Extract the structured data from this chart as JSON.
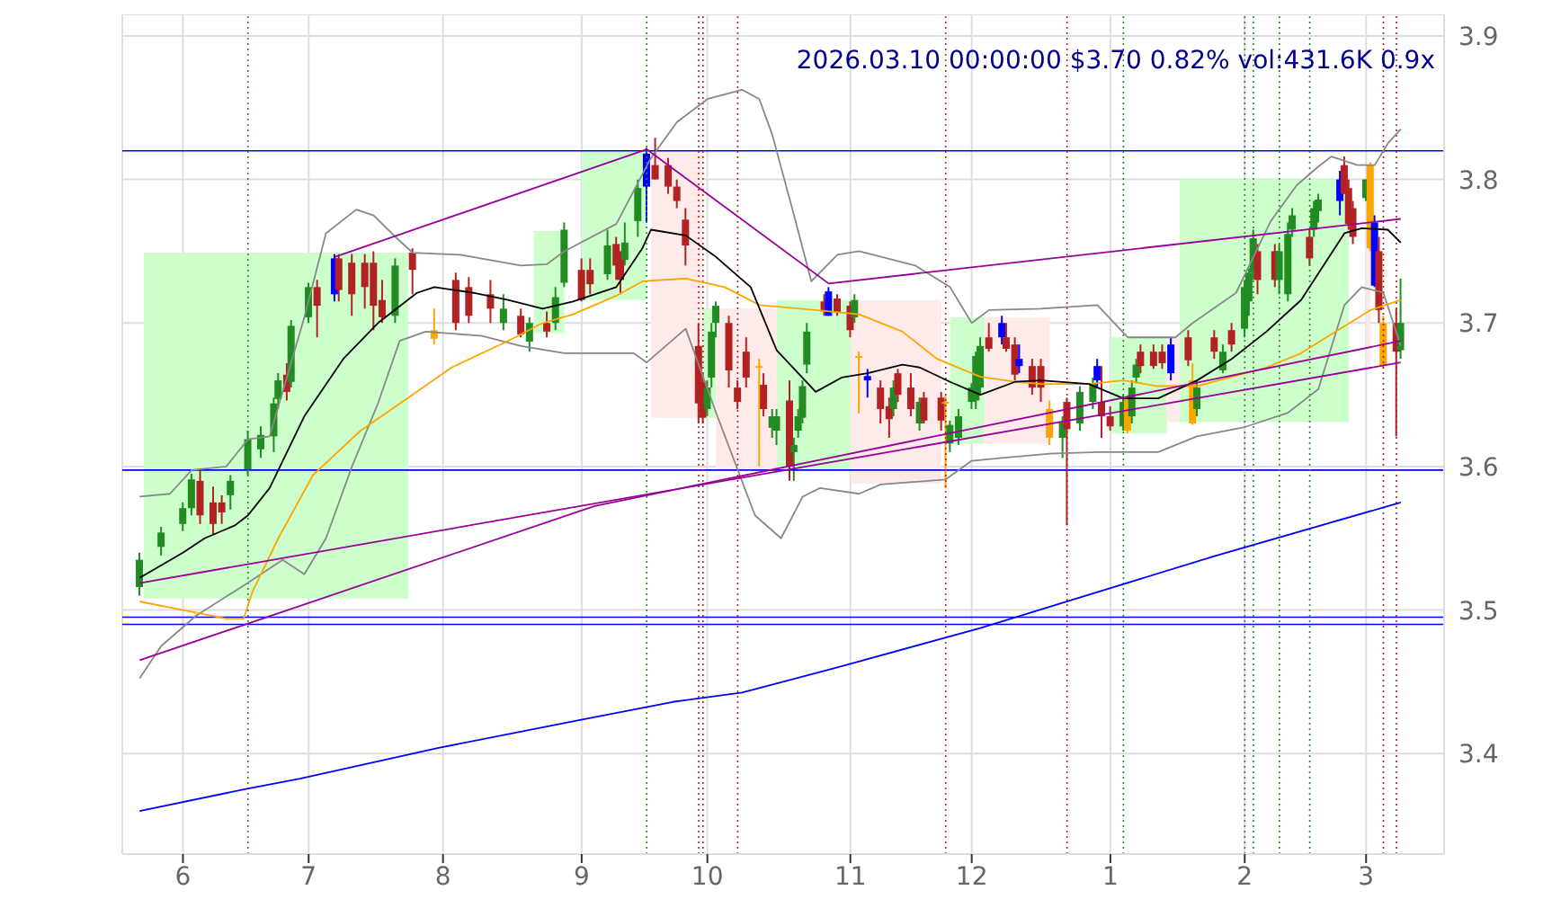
{
  "chart_data": {
    "type": "candlestick",
    "annotations": [
      "2026.03.10 00:00:00 $3.70 0.82% vol:431.6K 0.9x"
    ],
    "xlim": [
      "2025-05-19",
      "2026-03-20"
    ],
    "xticks": [
      {
        "value": "2025-06-02",
        "label": "6"
      },
      {
        "value": "2025-07-01",
        "label": "7"
      },
      {
        "value": "2025-08-01",
        "label": "8"
      },
      {
        "value": "2025-09-02",
        "label": "9"
      },
      {
        "value": "2025-10-01",
        "label": "10"
      },
      {
        "value": "2025-11-03",
        "label": "11"
      },
      {
        "value": "2025-12-01",
        "label": "12"
      },
      {
        "value": "2026-01-02",
        "label": "1"
      },
      {
        "value": "2026-02-02",
        "label": "2"
      },
      {
        "value": "2026-03-02",
        "label": "3"
      }
    ],
    "ylim": [
      3.33,
      3.915
    ],
    "yticks": [
      3.4,
      3.5,
      3.6,
      3.7,
      3.8,
      3.9
    ],
    "grid": true,
    "x": [
      "2025-05-23",
      "2025-05-28",
      "2025-06-02",
      "2025-06-04",
      "2025-06-06",
      "2025-06-09",
      "2025-06-11",
      "2025-06-13",
      "2025-06-17",
      "2025-06-20",
      "2025-06-23",
      "2025-06-24",
      "2025-06-26",
      "2025-06-27",
      "2025-07-01",
      "2025-07-03",
      "2025-07-07",
      "2025-07-08",
      "2025-07-11",
      "2025-07-14",
      "2025-07-16",
      "2025-07-18",
      "2025-07-21",
      "2025-07-25",
      "2025-07-30",
      "2025-08-04",
      "2025-08-07",
      "2025-08-12",
      "2025-08-15",
      "2025-08-19",
      "2025-08-21",
      "2025-08-25",
      "2025-08-27",
      "2025-08-29",
      "2025-09-02",
      "2025-09-04",
      "2025-09-08",
      "2025-09-10",
      "2025-09-11",
      "2025-09-12",
      "2025-09-15",
      "2025-09-17",
      "2025-09-19",
      "2025-09-22",
      "2025-09-24",
      "2025-09-26",
      "2025-09-29",
      "2025-09-30",
      "2025-10-01",
      "2025-10-02",
      "2025-10-03",
      "2025-10-06",
      "2025-10-08",
      "2025-10-10",
      "2025-10-13",
      "2025-10-14",
      "2025-10-16",
      "2025-10-17",
      "2025-10-20",
      "2025-10-21",
      "2025-10-22",
      "2025-10-23",
      "2025-10-24",
      "2025-10-28",
      "2025-10-29",
      "2025-10-31",
      "2025-11-03",
      "2025-11-04",
      "2025-11-05",
      "2025-11-07",
      "2025-11-10",
      "2025-11-12",
      "2025-11-13",
      "2025-11-14",
      "2025-11-17",
      "2025-11-19",
      "2025-11-20",
      "2025-11-24",
      "2025-11-25",
      "2025-11-26",
      "2025-11-28",
      "2025-12-01",
      "2025-12-02",
      "2025-12-03",
      "2025-12-05",
      "2025-12-08",
      "2025-12-09",
      "2025-12-11",
      "2025-12-12",
      "2025-12-15",
      "2025-12-17",
      "2025-12-19",
      "2025-12-22",
      "2025-12-23",
      "2025-12-26",
      "2025-12-29",
      "2025-12-30",
      "2025-12-31",
      "2026-01-02",
      "2026-01-05",
      "2026-01-06",
      "2026-01-07",
      "2026-01-08",
      "2026-01-09",
      "2026-01-12",
      "2026-01-14",
      "2026-01-16",
      "2026-01-20",
      "2026-01-21",
      "2026-01-22",
      "2026-01-26",
      "2026-01-28",
      "2026-01-30",
      "2026-02-02",
      "2026-02-03",
      "2026-02-04",
      "2026-02-05",
      "2026-02-09",
      "2026-02-10",
      "2026-02-12",
      "2026-02-13",
      "2026-02-17",
      "2026-02-18",
      "2026-02-19",
      "2026-02-24",
      "2026-02-25",
      "2026-02-26",
      "2026-02-27",
      "2026-03-02",
      "2026-03-03",
      "2026-03-04",
      "2026-03-05",
      "2026-03-06",
      "2026-03-09",
      "2026-03-10"
    ],
    "ohlc": [
      [
        3.516,
        3.54,
        3.51,
        3.535
      ],
      [
        3.544,
        3.558,
        3.538,
        3.554
      ],
      [
        3.56,
        3.575,
        3.555,
        3.571
      ],
      [
        3.571,
        3.595,
        3.566,
        3.591
      ],
      [
        3.59,
        3.598,
        3.56,
        3.566
      ],
      [
        3.575,
        3.586,
        3.553,
        3.56
      ],
      [
        3.575,
        3.58,
        3.56,
        3.568
      ],
      [
        3.58,
        3.594,
        3.57,
        3.59
      ],
      [
        3.598,
        3.625,
        3.594,
        3.619
      ],
      [
        3.612,
        3.628,
        3.606,
        3.622
      ],
      [
        3.621,
        3.648,
        3.61,
        3.644
      ],
      [
        3.647,
        3.665,
        3.64,
        3.66
      ],
      [
        3.664,
        3.672,
        3.646,
        3.652
      ],
      [
        3.659,
        3.702,
        3.655,
        3.698
      ],
      [
        3.704,
        3.728,
        3.7,
        3.725
      ],
      [
        3.725,
        3.73,
        3.69,
        3.712
      ],
      [
        3.72,
        3.748,
        3.715,
        3.745
      ],
      [
        3.745,
        3.748,
        3.715,
        3.723
      ],
      [
        3.742,
        3.748,
        3.705,
        3.72
      ],
      [
        3.742,
        3.748,
        3.71,
        3.725
      ],
      [
        3.742,
        3.75,
        3.695,
        3.712
      ],
      [
        3.716,
        3.73,
        3.7,
        3.704
      ],
      [
        3.705,
        3.745,
        3.7,
        3.74
      ],
      [
        3.749,
        3.752,
        3.72,
        3.737
      ],
      [
        3.695,
        3.71,
        3.685,
        3.689
      ],
      [
        3.73,
        3.735,
        3.695,
        3.7
      ],
      [
        3.725,
        3.732,
        3.7,
        3.705
      ],
      [
        3.72,
        3.73,
        3.7,
        3.71
      ],
      [
        3.7,
        3.72,
        3.695,
        3.71
      ],
      [
        3.705,
        3.71,
        3.69,
        3.692
      ],
      [
        3.687,
        3.704,
        3.68,
        3.7
      ],
      [
        3.7,
        3.708,
        3.69,
        3.694
      ],
      [
        3.7,
        3.725,
        3.695,
        3.718
      ],
      [
        3.728,
        3.77,
        3.725,
        3.765
      ],
      [
        3.737,
        3.745,
        3.715,
        3.716
      ],
      [
        3.737,
        3.745,
        3.72,
        3.727
      ],
      [
        3.734,
        3.765,
        3.73,
        3.754
      ],
      [
        3.755,
        3.76,
        3.73,
        3.74
      ],
      [
        3.745,
        3.75,
        3.72,
        3.73
      ],
      [
        3.744,
        3.77,
        3.74,
        3.756
      ],
      [
        3.771,
        3.8,
        3.76,
        3.794
      ],
      [
        3.795,
        3.822,
        3.77,
        3.818
      ],
      [
        3.81,
        3.829,
        3.8,
        3.8
      ],
      [
        3.81,
        3.815,
        3.79,
        3.795
      ],
      [
        3.795,
        3.8,
        3.78,
        3.785
      ],
      [
        3.772,
        3.78,
        3.74,
        3.754
      ],
      [
        3.684,
        3.7,
        3.63,
        3.644
      ],
      [
        3.659,
        3.665,
        3.63,
        3.634
      ],
      [
        3.64,
        3.66,
        3.635,
        3.655
      ],
      [
        3.662,
        3.7,
        3.655,
        3.694
      ],
      [
        3.7,
        3.715,
        3.69,
        3.712
      ],
      [
        3.7,
        3.705,
        3.655,
        3.667
      ],
      [
        3.655,
        3.66,
        3.64,
        3.645
      ],
      [
        3.68,
        3.69,
        3.655,
        3.662
      ],
      [
        3.67,
        3.675,
        3.6,
        3.67
      ],
      [
        3.657,
        3.665,
        3.635,
        3.64
      ],
      [
        3.627,
        3.64,
        3.62,
        3.635
      ],
      [
        3.625,
        3.64,
        3.615,
        3.635
      ],
      [
        3.646,
        3.66,
        3.59,
        3.6
      ],
      [
        3.61,
        3.62,
        3.59,
        3.615
      ],
      [
        3.625,
        3.64,
        3.62,
        3.635
      ],
      [
        3.634,
        3.66,
        3.63,
        3.656
      ],
      [
        3.671,
        3.7,
        3.665,
        3.694
      ],
      [
        3.715,
        3.72,
        3.705,
        3.708
      ],
      [
        3.705,
        3.725,
        3.705,
        3.722
      ],
      [
        3.717,
        3.72,
        3.705,
        3.707
      ],
      [
        3.712,
        3.715,
        3.69,
        3.695
      ],
      [
        3.704,
        3.72,
        3.7,
        3.716
      ],
      [
        3.677,
        3.68,
        3.637,
        3.676
      ],
      [
        3.663,
        3.668,
        3.648,
        3.66
      ],
      [
        3.655,
        3.66,
        3.63,
        3.64
      ],
      [
        3.642,
        3.648,
        3.62,
        3.633
      ],
      [
        3.64,
        3.66,
        3.635,
        3.655
      ],
      [
        3.665,
        3.668,
        3.645,
        3.65
      ],
      [
        3.655,
        3.665,
        3.635,
        3.64
      ],
      [
        3.63,
        3.648,
        3.625,
        3.645
      ],
      [
        3.648,
        3.652,
        3.63,
        3.632
      ],
      [
        3.648,
        3.652,
        3.625,
        3.632
      ],
      [
        3.645,
        3.65,
        3.585,
        3.644
      ],
      [
        3.616,
        3.632,
        3.61,
        3.629
      ],
      [
        3.62,
        3.64,
        3.615,
        3.635
      ],
      [
        3.645,
        3.658,
        3.64,
        3.655
      ],
      [
        3.646,
        3.68,
        3.64,
        3.677
      ],
      [
        3.655,
        3.69,
        3.65,
        3.684
      ],
      [
        3.69,
        3.7,
        3.68,
        3.682
      ],
      [
        3.69,
        3.705,
        3.685,
        3.7
      ],
      [
        3.69,
        3.7,
        3.68,
        3.682
      ],
      [
        3.685,
        3.69,
        3.66,
        3.664
      ],
      [
        3.675,
        3.685,
        3.665,
        3.67
      ],
      [
        3.67,
        3.675,
        3.65,
        3.655
      ],
      [
        3.67,
        3.675,
        3.645,
        3.655
      ],
      [
        3.64,
        3.646,
        3.615,
        3.62
      ],
      [
        3.62,
        3.635,
        3.606,
        3.631
      ],
      [
        3.645,
        3.648,
        3.559,
        3.626
      ],
      [
        3.63,
        3.656,
        3.625,
        3.652
      ],
      [
        3.645,
        3.662,
        3.64,
        3.658
      ],
      [
        3.66,
        3.675,
        3.655,
        3.67
      ],
      [
        3.645,
        3.67,
        3.62,
        3.635
      ],
      [
        3.635,
        3.642,
        3.625,
        3.628
      ],
      [
        3.628,
        3.65,
        3.625,
        3.645
      ],
      [
        3.647,
        3.65,
        3.623,
        3.625
      ],
      [
        3.635,
        3.66,
        3.63,
        3.655
      ],
      [
        3.662,
        3.675,
        3.658,
        3.671
      ],
      [
        3.68,
        3.685,
        3.665,
        3.67
      ],
      [
        3.68,
        3.685,
        3.668,
        3.67
      ],
      [
        3.68,
        3.685,
        3.668,
        3.672
      ],
      [
        3.665,
        3.69,
        3.66,
        3.685
      ],
      [
        3.69,
        3.695,
        3.67,
        3.674
      ],
      [
        3.66,
        3.672,
        3.629,
        3.63
      ],
      [
        3.64,
        3.66,
        3.635,
        3.655
      ],
      [
        3.69,
        3.695,
        3.675,
        3.68
      ],
      [
        3.667,
        3.685,
        3.665,
        3.68
      ],
      [
        3.695,
        3.7,
        3.68,
        3.685
      ],
      [
        3.696,
        3.73,
        3.69,
        3.725
      ],
      [
        3.715,
        3.738,
        3.705,
        3.735
      ],
      [
        3.735,
        3.765,
        3.73,
        3.759
      ],
      [
        3.75,
        3.755,
        3.72,
        3.73
      ],
      [
        3.75,
        3.755,
        3.725,
        3.73
      ],
      [
        3.73,
        3.755,
        3.72,
        3.75
      ],
      [
        3.72,
        3.77,
        3.715,
        3.762
      ],
      [
        3.765,
        3.78,
        3.76,
        3.775
      ],
      [
        3.76,
        3.765,
        3.74,
        3.745
      ],
      [
        3.765,
        3.785,
        3.76,
        3.78
      ],
      [
        3.778,
        3.79,
        3.77,
        3.786
      ],
      [
        3.785,
        3.806,
        3.775,
        3.8
      ],
      [
        3.81,
        3.816,
        3.79,
        3.79
      ],
      [
        3.794,
        3.8,
        3.765,
        3.769
      ],
      [
        3.78,
        3.785,
        3.755,
        3.76
      ],
      [
        3.787,
        3.8,
        3.785,
        3.8
      ],
      [
        3.81,
        3.812,
        3.75,
        3.752
      ],
      [
        3.77,
        3.775,
        3.725,
        3.726
      ],
      [
        3.75,
        3.76,
        3.7,
        3.709
      ],
      [
        3.7,
        3.705,
        3.668,
        3.67
      ],
      [
        3.7,
        3.71,
        3.621,
        3.68
      ],
      [
        3.681,
        3.731,
        3.675,
        3.7
      ]
    ],
    "colors": [
      "#228b22",
      "#228b22",
      "#228b22",
      "#228b22",
      "#b22222",
      "#b22222",
      "#b22222",
      "#228b22",
      "#228b22",
      "#228b22",
      "#228b22",
      "#228b22",
      "#b22222",
      "#228b22",
      "#228b22",
      "#b22222",
      "#0000ff",
      "#b22222",
      "#b22222",
      "#b22222",
      "#b22222",
      "#b22222",
      "#228b22",
      "#b22222",
      "#ffa500",
      "#b22222",
      "#b22222",
      "#b22222",
      "#228b22",
      "#b22222",
      "#228b22",
      "#b22222",
      "#228b22",
      "#228b22",
      "#b22222",
      "#b22222",
      "#228b22",
      "#b22222",
      "#b22222",
      "#228b22",
      "#228b22",
      "#0000ff",
      "#b22222",
      "#b22222",
      "#b22222",
      "#b22222",
      "#b22222",
      "#b22222",
      "#228b22",
      "#228b22",
      "#228b22",
      "#b22222",
      "#b22222",
      "#b22222",
      "#ffa500",
      "#b22222",
      "#228b22",
      "#228b22",
      "#b22222",
      "#228b22",
      "#228b22",
      "#228b22",
      "#228b22",
      "#b22222",
      "#0000ff",
      "#b22222",
      "#b22222",
      "#228b22",
      "#ffa500",
      "#0000ff",
      "#b22222",
      "#b22222",
      "#228b22",
      "#b22222",
      "#b22222",
      "#228b22",
      "#b22222",
      "#b22222",
      "#ffa500",
      "#228b22",
      "#228b22",
      "#228b22",
      "#228b22",
      "#228b22",
      "#b22222",
      "#0000ff",
      "#b22222",
      "#b22222",
      "#0000ff",
      "#b22222",
      "#b22222",
      "#ffa500",
      "#228b22",
      "#b22222",
      "#228b22",
      "#228b22",
      "#0000ff",
      "#b22222",
      "#b22222",
      "#228b22",
      "#ffa500",
      "#228b22",
      "#228b22",
      "#b22222",
      "#b22222",
      "#b22222",
      "#0000ff",
      "#b22222",
      "#ffa500",
      "#228b22",
      "#b22222",
      "#228b22",
      "#b22222",
      "#228b22",
      "#228b22",
      "#228b22",
      "#b22222",
      "#b22222",
      "#228b22",
      "#228b22",
      "#228b22",
      "#b22222",
      "#228b22",
      "#228b22",
      "#0000ff",
      "#b22222",
      "#b22222",
      "#b22222",
      "#228b22",
      "#ffa500",
      "#0000ff",
      "#b22222",
      "#ffa500",
      "#b22222",
      "#228b22"
    ],
    "series": [
      {
        "type": "line",
        "color": "#ccffcc",
        "x": [
          "2025-05-24",
          "2025-07-24"
        ],
        "values": [
          null,
          null
        ],
        "upper": [
          3.749,
          3.749
        ],
        "lower": [
          3.508,
          3.508
        ]
      },
      {
        "type": "line",
        "color": "#ccffcc",
        "x": [
          "2025-08-22",
          "2025-08-29"
        ],
        "values": [
          null,
          null
        ],
        "upper": [
          3.764,
          3.764
        ],
        "lower": [
          3.693,
          3.693
        ]
      },
      {
        "type": "line",
        "color": "#ccffcc",
        "x": [
          "2025-09-02",
          "2025-09-17"
        ],
        "values": [
          null,
          null
        ],
        "upper": [
          3.82,
          3.82
        ],
        "lower": [
          3.716,
          3.716
        ]
      },
      {
        "type": "line",
        "color": "#ffeaea",
        "x": [
          "2025-09-18",
          "2025-09-30"
        ],
        "values": [
          null,
          null
        ],
        "upper": [
          3.82,
          3.82
        ],
        "lower": [
          3.634,
          3.634
        ]
      },
      {
        "type": "line",
        "color": "#ccffcc",
        "x": [
          "2025-09-30",
          "2025-10-03"
        ],
        "values": [
          null,
          null
        ],
        "upper": [
          3.71,
          3.71
        ],
        "lower": [
          3.634,
          3.634
        ]
      },
      {
        "type": "line",
        "color": "#ffeaea",
        "x": [
          "2025-10-03",
          "2025-10-17"
        ],
        "values": [
          null,
          null
        ],
        "upper": [
          3.71,
          3.71
        ],
        "lower": [
          3.598,
          3.598
        ]
      },
      {
        "type": "line",
        "color": "#ccffcc",
        "x": [
          "2025-10-17",
          "2025-11-03"
        ],
        "values": [
          null,
          null
        ],
        "upper": [
          3.716,
          3.716
        ],
        "lower": [
          3.598,
          3.598
        ]
      },
      {
        "type": "line",
        "color": "#ffeaea",
        "x": [
          "2025-11-03",
          "2025-11-24"
        ],
        "values": [
          null,
          null
        ],
        "upper": [
          3.716,
          3.716
        ],
        "lower": [
          3.588,
          3.588
        ]
      },
      {
        "type": "line",
        "color": "#ccffcc",
        "x": [
          "2025-11-26",
          "2025-12-04"
        ],
        "values": [
          null,
          null
        ],
        "upper": [
          3.704,
          3.704
        ],
        "lower": [
          3.616,
          3.616
        ]
      },
      {
        "type": "line",
        "color": "#ffeaea",
        "x": [
          "2025-12-04",
          "2025-12-19"
        ],
        "values": [
          null,
          null
        ],
        "upper": [
          3.704,
          3.704
        ],
        "lower": [
          3.616,
          3.616
        ]
      },
      {
        "type": "line",
        "color": "#ccffcc",
        "x": [
          "2026-01-02",
          "2026-01-15"
        ],
        "values": [
          null,
          null
        ],
        "upper": [
          3.69,
          3.69
        ],
        "lower": [
          3.623,
          3.623
        ]
      },
      {
        "type": "line",
        "color": "#ffeaea",
        "x": [
          "2026-01-15",
          "2026-01-18"
        ],
        "values": [
          null,
          null
        ],
        "upper": [
          3.69,
          3.69
        ],
        "lower": [
          3.631,
          3.631
        ]
      },
      {
        "type": "line",
        "color": "#ccffcc",
        "x": [
          "2026-01-18",
          "2026-02-26"
        ],
        "values": [
          null,
          null
        ],
        "upper": [
          3.8,
          3.8
        ],
        "lower": [
          3.631,
          3.631
        ]
      },
      {
        "type": "line",
        "color": "#ffeaea",
        "x": [
          "2026-03-02",
          "2026-03-03"
        ],
        "values": [
          null,
          null
        ],
        "upper": [
          3.771,
          3.771
        ],
        "lower": [
          3.671,
          3.671
        ]
      },
      {
        "type": "line",
        "color": "#888888",
        "x": [
          "2025-05-23",
          "2025-05-30",
          "2025-06-04",
          "2025-06-12",
          "2025-06-17",
          "2025-06-22",
          "2025-06-30",
          "2025-07-05",
          "2025-07-12",
          "2025-07-16",
          "2025-07-21",
          "2025-07-25",
          "2025-08-05",
          "2025-08-19",
          "2025-08-25",
          "2025-08-29",
          "2025-09-10",
          "2025-09-18",
          "2025-09-24",
          "2025-10-01",
          "2025-10-09",
          "2025-10-13",
          "2025-10-16",
          "2025-10-21",
          "2025-10-25",
          "2025-10-31",
          "2025-11-05",
          "2025-11-18",
          "2025-11-26",
          "2025-12-01",
          "2025-12-05",
          "2025-12-17",
          "2025-12-30",
          "2026-01-06",
          "2026-01-17",
          "2026-01-21",
          "2026-01-31",
          "2026-02-08",
          "2026-02-14",
          "2026-02-19",
          "2026-02-22",
          "2026-02-28",
          "2026-03-04",
          "2026-03-07",
          "2026-03-10"
        ],
        "values": [
          3.579,
          3.581,
          3.5975,
          3.6,
          3.619,
          3.621,
          3.704,
          3.7625,
          3.779,
          3.775,
          3.76,
          3.749,
          3.7475,
          3.74,
          3.741,
          3.75,
          3.769,
          3.815,
          3.84,
          3.856,
          3.8625,
          3.856,
          3.831,
          3.775,
          3.729,
          3.7475,
          3.75,
          3.74,
          3.725,
          3.7,
          3.709,
          3.71,
          3.7125,
          3.69,
          3.69,
          3.7,
          3.721,
          3.771,
          3.796,
          3.809,
          3.816,
          3.81,
          3.81,
          3.825,
          3.835
        ]
      },
      {
        "type": "line",
        "color": "#888888",
        "x": [
          "2025-05-23",
          "2025-05-28",
          "2025-06-05",
          "2025-06-17",
          "2025-06-25",
          "2025-06-30",
          "2025-07-05",
          "2025-07-11",
          "2025-07-17",
          "2025-07-22",
          "2025-07-28",
          "2025-08-10",
          "2025-08-19",
          "2025-08-29",
          "2025-09-14",
          "2025-09-17",
          "2025-09-26",
          "2025-10-03",
          "2025-10-12",
          "2025-10-18",
          "2025-10-23",
          "2025-10-27",
          "2025-11-05",
          "2025-11-10",
          "2025-11-25",
          "2025-12-01",
          "2025-12-08",
          "2025-12-19",
          "2025-12-30",
          "2026-01-13",
          "2026-01-22",
          "2026-02-02",
          "2026-02-12",
          "2026-02-19",
          "2026-02-25",
          "2026-03-01",
          "2026-03-06",
          "2026-03-10"
        ],
        "values": [
          3.4525,
          3.475,
          3.496,
          3.519,
          3.535,
          3.525,
          3.55,
          3.6,
          3.644,
          3.6875,
          3.694,
          3.691,
          3.684,
          3.679,
          3.679,
          3.6725,
          3.696,
          3.6375,
          3.566,
          3.55,
          3.579,
          3.585,
          3.581,
          3.5875,
          3.591,
          3.604,
          3.606,
          3.609,
          3.61,
          3.61,
          3.621,
          3.6275,
          3.6375,
          3.654,
          3.7125,
          3.725,
          3.721,
          3.684
        ]
      },
      {
        "type": "line",
        "color": "#0000ff",
        "x": [
          "2025-05-23",
          "2025-06-16",
          "2025-06-29",
          "2025-07-31",
          "2025-08-31",
          "2025-09-23",
          "2025-10-09",
          "2025-10-31",
          "2025-12-03",
          "2025-12-30",
          "2026-01-26",
          "2026-03-10"
        ],
        "values": [
          3.36,
          3.375,
          3.3825,
          3.404,
          3.4225,
          3.436,
          3.4425,
          3.46,
          3.4875,
          3.5125,
          3.5375,
          3.575
        ]
      },
      {
        "type": "line",
        "color": "#ffa500",
        "x": [
          "2025-05-23",
          "2025-06-02",
          "2025-06-12",
          "2025-06-16",
          "2025-06-18",
          "2025-06-24",
          "2025-07-02",
          "2025-07-13",
          "2025-07-25",
          "2025-08-03",
          "2025-08-16",
          "2025-08-24",
          "2025-08-31",
          "2025-09-10",
          "2025-09-16",
          "2025-09-26",
          "2025-10-05",
          "2025-10-13",
          "2025-10-26",
          "2025-11-05",
          "2025-11-15",
          "2025-11-23",
          "2025-12-03",
          "2025-12-11",
          "2025-12-17",
          "2025-12-28",
          "2026-01-05",
          "2026-01-13",
          "2026-01-22",
          "2026-01-30",
          "2026-02-07",
          "2026-02-15",
          "2026-02-23",
          "2026-03-03",
          "2026-03-10"
        ],
        "values": [
          3.506,
          3.5,
          3.494,
          3.494,
          3.5125,
          3.55,
          3.594,
          3.625,
          3.65,
          3.669,
          3.6875,
          3.7,
          3.706,
          3.719,
          3.729,
          3.731,
          3.725,
          3.7125,
          3.709,
          3.706,
          3.694,
          3.675,
          3.6625,
          3.659,
          3.6575,
          3.6575,
          3.66,
          3.656,
          3.656,
          3.6625,
          3.669,
          3.679,
          3.694,
          3.709,
          3.716
        ]
      },
      {
        "type": "line",
        "color": "#000000",
        "x": [
          "2025-05-23",
          "2025-06-02",
          "2025-06-07",
          "2025-06-14",
          "2025-06-17",
          "2025-06-22",
          "2025-06-30",
          "2025-07-09",
          "2025-07-17",
          "2025-07-26",
          "2025-07-30",
          "2025-08-08",
          "2025-08-16",
          "2025-08-24",
          "2025-08-31",
          "2025-09-10",
          "2025-09-16",
          "2025-09-18",
          "2025-09-26",
          "2025-10-03",
          "2025-10-11",
          "2025-10-17",
          "2025-10-26",
          "2025-11-01",
          "2025-11-07",
          "2025-11-15",
          "2025-11-19",
          "2025-11-26",
          "2025-12-03",
          "2025-12-11",
          "2025-12-17",
          "2025-12-28",
          "2026-01-05",
          "2026-01-13",
          "2026-01-22",
          "2026-01-30",
          "2026-02-07",
          "2026-02-15",
          "2026-02-25",
          "2026-03-01",
          "2026-03-07",
          "2026-03-10"
        ],
        "values": [
          3.5225,
          3.54,
          3.55,
          3.559,
          3.566,
          3.585,
          3.635,
          3.675,
          3.7,
          3.721,
          3.725,
          3.721,
          3.716,
          3.71,
          3.715,
          3.725,
          3.752,
          3.765,
          3.761,
          3.746,
          3.725,
          3.681,
          3.652,
          3.662,
          3.665,
          3.671,
          3.669,
          3.659,
          3.65,
          3.659,
          3.66,
          3.6575,
          3.6475,
          3.6475,
          3.66,
          3.675,
          3.694,
          3.716,
          3.7625,
          3.766,
          3.765,
          3.756
        ]
      },
      {
        "type": "line",
        "color": "#990099",
        "x": [
          "2025-05-23",
          "2026-03-10"
        ],
        "values": [
          3.51875,
          3.6725
        ]
      },
      {
        "type": "line",
        "color": "#990099",
        "x": [
          "2025-05-23",
          "2025-09-05",
          "2026-03-10"
        ],
        "values": [
          3.465,
          3.5725,
          3.6875
        ]
      },
      {
        "type": "line",
        "color": "#990099",
        "x": [
          "2025-07-07",
          "2025-09-17",
          "2025-10-29",
          "2026-03-10"
        ],
        "values": [
          3.746,
          3.821,
          3.7275,
          3.7725
        ]
      }
    ],
    "ref_lines": [
      {
        "axis": "y",
        "value": 3.82,
        "color": "#0000ff"
      },
      {
        "axis": "y",
        "value": 3.5975,
        "color": "#0000ff"
      },
      {
        "axis": "y",
        "value": 3.495,
        "color": "#0000ff"
      },
      {
        "axis": "y",
        "value": 3.49,
        "color": "#0000ff"
      },
      {
        "axis": "x",
        "value": "2025-06-17",
        "color": "#228b22",
        "line_style": "dotted"
      },
      {
        "axis": "x",
        "value": "2025-09-17",
        "color": "#228b22",
        "line_style": "dotted"
      },
      {
        "axis": "x",
        "value": "2025-09-29",
        "color": "#b22222",
        "line_style": "dotted"
      },
      {
        "axis": "x",
        "value": "2025-09-30",
        "color": "#b22222",
        "line_style": "dotted"
      },
      {
        "axis": "x",
        "value": "2025-10-08",
        "color": "#b22222",
        "line_style": "dotted"
      },
      {
        "axis": "x",
        "value": "2025-11-25",
        "color": "#b22222",
        "line_style": "dotted"
      },
      {
        "axis": "x",
        "value": "2025-12-23",
        "color": "#b22222",
        "line_style": "dotted"
      },
      {
        "axis": "x",
        "value": "2026-01-05",
        "color": "#228b22",
        "line_style": "dotted"
      },
      {
        "axis": "x",
        "value": "2026-02-02",
        "color": "#228b22",
        "line_style": "dotted"
      },
      {
        "axis": "x",
        "value": "2026-02-04",
        "color": "#228b22",
        "line_style": "dotted"
      },
      {
        "axis": "x",
        "value": "2026-02-10",
        "color": "#228b22",
        "line_style": "dotted"
      },
      {
        "axis": "x",
        "value": "2026-02-17",
        "color": "#228b22",
        "line_style": "dotted"
      },
      {
        "axis": "x",
        "value": "2026-03-06",
        "color": "#b22222",
        "line_style": "dotted"
      },
      {
        "axis": "x",
        "value": "2026-03-09",
        "color": "#b22222",
        "line_style": "dotted"
      }
    ]
  }
}
